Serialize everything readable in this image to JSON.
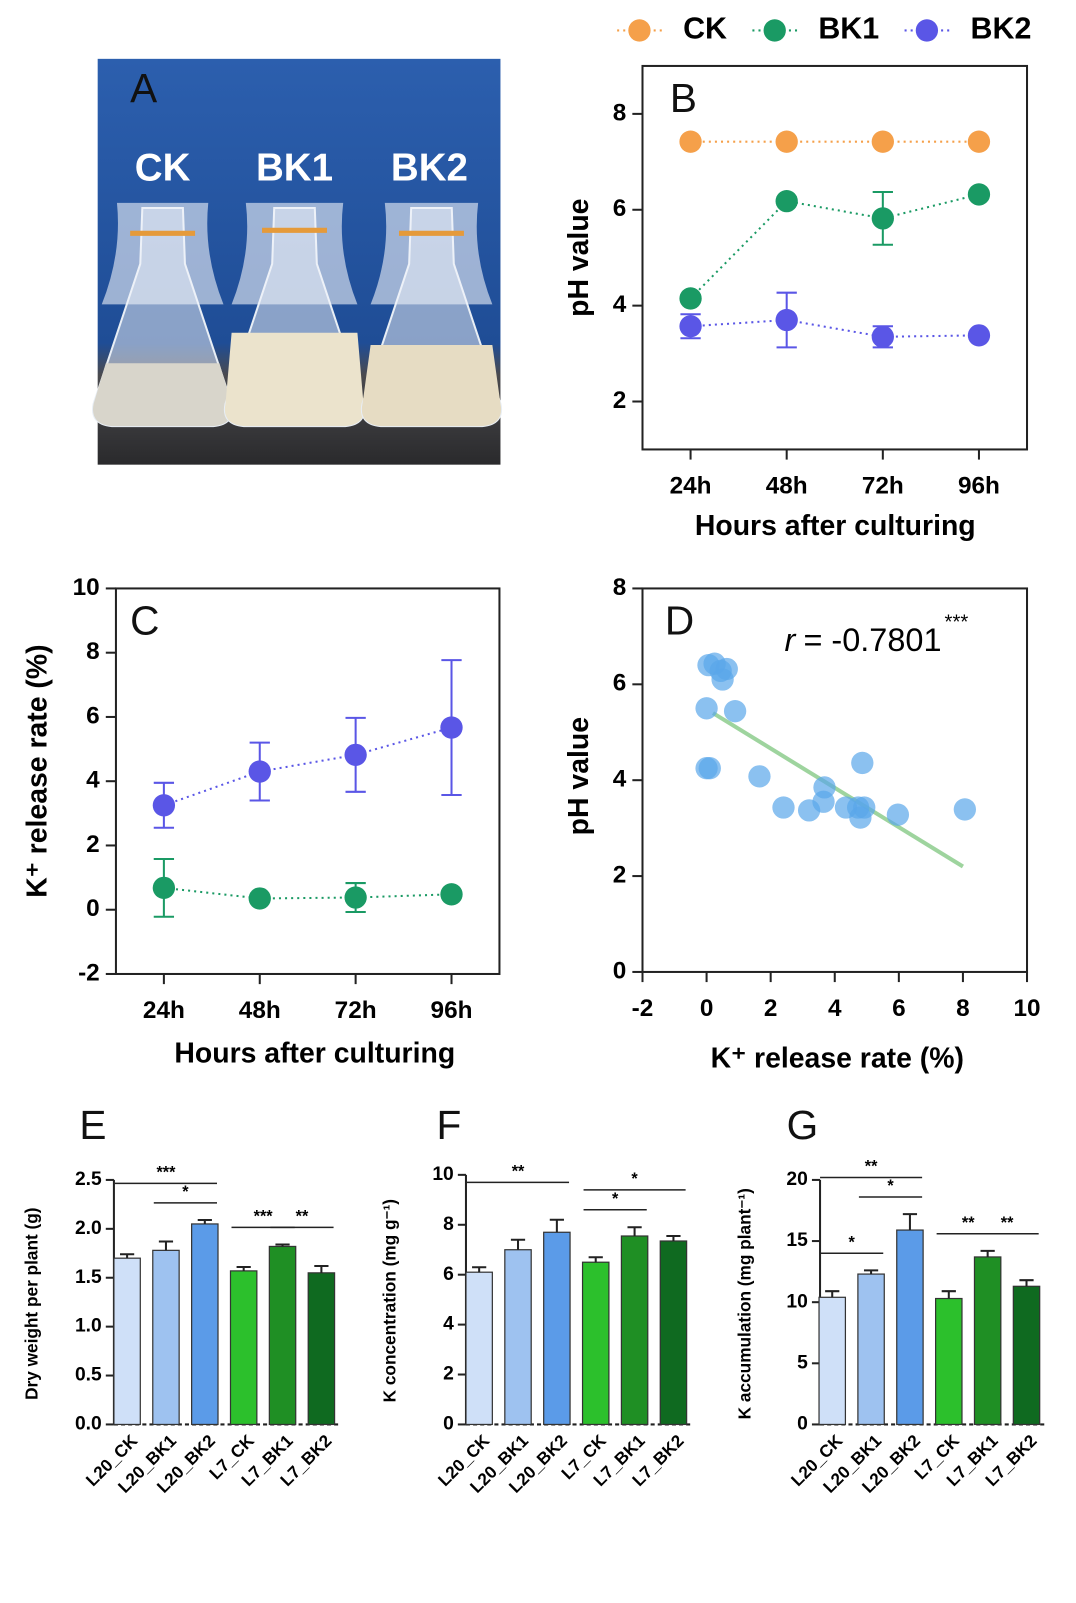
{
  "photo": {
    "panel": "A",
    "labels": [
      "CK",
      "BK1",
      "BK2"
    ]
  },
  "chart_data": [
    {
      "type": "line",
      "panel": "B",
      "ylabel": "pH value",
      "xlabel": "Hours after culturing",
      "categories": [
        "24h",
        "48h",
        "72h",
        "96h"
      ],
      "ylim": [
        1,
        9
      ],
      "yticks": [
        2,
        4,
        6,
        8
      ],
      "legend": "top",
      "series": [
        {
          "name": "CK",
          "color": "#f5a04a",
          "values": [
            7.42,
            7.42,
            7.42,
            7.42
          ],
          "errors": [
            0.03,
            0.03,
            0.03,
            0.03
          ]
        },
        {
          "name": "BK1",
          "color": "#1a9a64",
          "values": [
            4.15,
            6.18,
            5.82,
            6.32
          ],
          "errors": [
            0.05,
            0.08,
            0.55,
            0.05
          ]
        },
        {
          "name": "BK2",
          "color": "#5a56e6",
          "values": [
            3.57,
            3.7,
            3.35,
            3.38
          ],
          "errors": [
            0.25,
            0.57,
            0.22,
            0.05
          ]
        }
      ]
    },
    {
      "type": "line",
      "panel": "C",
      "ylabel": "K⁺ release rate (%)",
      "xlabel": "Hours after culturing",
      "categories": [
        "24h",
        "48h",
        "72h",
        "96h"
      ],
      "ylim": [
        -2,
        10
      ],
      "yticks": [
        -2,
        0,
        2,
        4,
        6,
        8,
        10
      ],
      "series": [
        {
          "color": "#5a56e6",
          "values": [
            3.25,
            4.3,
            4.82,
            5.67
          ],
          "errors": [
            0.7,
            0.9,
            1.15,
            2.1
          ]
        },
        {
          "color": "#1a9a64",
          "values": [
            0.68,
            0.35,
            0.38,
            0.48
          ],
          "errors": [
            0.9,
            0.05,
            0.45,
            0.05
          ]
        }
      ]
    },
    {
      "type": "scatter",
      "panel": "D",
      "ylabel": "pH value",
      "xlabel": "K⁺ release rate (%)",
      "annotation": [
        "r",
        "= -0.7801",
        "***"
      ],
      "xlim": [
        -2,
        10
      ],
      "xticks": [
        -2,
        0,
        2,
        4,
        6,
        8,
        10
      ],
      "ylim": [
        0,
        8
      ],
      "yticks": [
        0,
        2,
        4,
        6,
        8
      ],
      "color": "#5aa7ea",
      "trend_color": "#9ed49e",
      "x": [
        0.06,
        0.25,
        0.44,
        0.63,
        0.5,
        0.0,
        0.89,
        0.0,
        0.1,
        1.65,
        2.4,
        3.2,
        3.68,
        3.65,
        4.35,
        4.86,
        4.73,
        4.8,
        4.92,
        5.97,
        8.06
      ],
      "values": [
        6.4,
        6.43,
        6.28,
        6.32,
        6.1,
        5.5,
        5.44,
        4.25,
        4.25,
        4.08,
        3.43,
        3.37,
        3.85,
        3.55,
        3.43,
        4.36,
        3.43,
        3.22,
        3.43,
        3.28,
        3.39
      ],
      "trendline": {
        "x": [
          0.2,
          8.0
        ],
        "values": [
          5.4,
          2.2
        ]
      }
    },
    {
      "type": "bar",
      "panel": "E",
      "ylabel": "Dry weight per plant (g)",
      "categories": [
        "L20_CK",
        "L20_BK1",
        "L20_BK2",
        "L7_CK",
        "L7_BK1",
        "L7_BK2"
      ],
      "colors": [
        "#cfe0f8",
        "#9ec2f0",
        "#5b9be8",
        "#2cc02c",
        "#1f8f24",
        "#0f6a20"
      ],
      "values": [
        1.7,
        1.78,
        2.05,
        1.57,
        1.82,
        1.55
      ],
      "errors": [
        0.04,
        0.09,
        0.04,
        0.04,
        0.02,
        0.07
      ],
      "ylim": [
        0,
        2.5
      ],
      "yticks": [
        {
          "value": 0,
          "label": "0.0"
        },
        {
          "value": 0.5,
          "label": "0.5"
        },
        {
          "value": 1,
          "label": "1.0"
        },
        {
          "value": 1.5,
          "label": "1.5"
        },
        {
          "value": 2,
          "label": "2.0"
        },
        {
          "value": 2.5,
          "label": "2.5"
        }
      ],
      "significance": [
        {
          "bars": [
            0,
            2
          ],
          "label": "***"
        },
        {
          "bars": [
            1,
            2
          ],
          "label": "*"
        },
        {
          "bars": [
            3,
            4
          ],
          "label": "***"
        },
        {
          "bars": [
            4,
            5
          ],
          "label": "**"
        }
      ]
    },
    {
      "type": "bar",
      "panel": "F",
      "ylabel": "K concentration (mg g⁻¹)",
      "categories": [
        "L20_CK",
        "L20_BK1",
        "L20_BK2",
        "L7_CK",
        "L7_BK1",
        "L7_BK2"
      ],
      "colors": [
        "#cfe0f8",
        "#9ec2f0",
        "#5b9be8",
        "#2cc02c",
        "#1f8f24",
        "#0f6a20"
      ],
      "values": [
        6.1,
        7.0,
        7.7,
        6.5,
        7.55,
        7.35
      ],
      "errors": [
        0.2,
        0.4,
        0.5,
        0.2,
        0.35,
        0.2
      ],
      "ylim": [
        0,
        10
      ],
      "yticks": [
        0,
        2,
        4,
        6,
        8,
        10
      ],
      "significance": [
        {
          "bars": [
            0,
            2
          ],
          "label": "**"
        },
        {
          "bars": [
            3,
            4
          ],
          "label": "*"
        },
        {
          "bars": [
            3,
            5
          ],
          "label": "*"
        }
      ]
    },
    {
      "type": "bar",
      "panel": "G",
      "ylabel": "K accumulation (mg plant⁻¹)",
      "categories": [
        "L20_CK",
        "L20_BK1",
        "L20_BK2",
        "L7_CK",
        "L7_BK1",
        "L7_BK2"
      ],
      "colors": [
        "#cfe0f8",
        "#9ec2f0",
        "#5b9be8",
        "#2cc02c",
        "#1f8f24",
        "#0f6a20"
      ],
      "values": [
        10.4,
        12.3,
        15.9,
        10.3,
        13.7,
        11.3
      ],
      "errors": [
        0.5,
        0.3,
        1.3,
        0.6,
        0.5,
        0.5
      ],
      "ylim": [
        0,
        20
      ],
      "yticks": [
        0,
        5,
        10,
        15,
        20
      ],
      "significance": [
        {
          "bars": [
            0,
            1
          ],
          "label": "*"
        },
        {
          "bars": [
            0,
            2
          ],
          "label": "**"
        },
        {
          "bars": [
            1,
            2
          ],
          "label": "*"
        },
        {
          "bars": [
            3,
            4
          ],
          "label": "**"
        },
        {
          "bars": [
            4,
            5
          ],
          "label": "**"
        }
      ]
    }
  ]
}
